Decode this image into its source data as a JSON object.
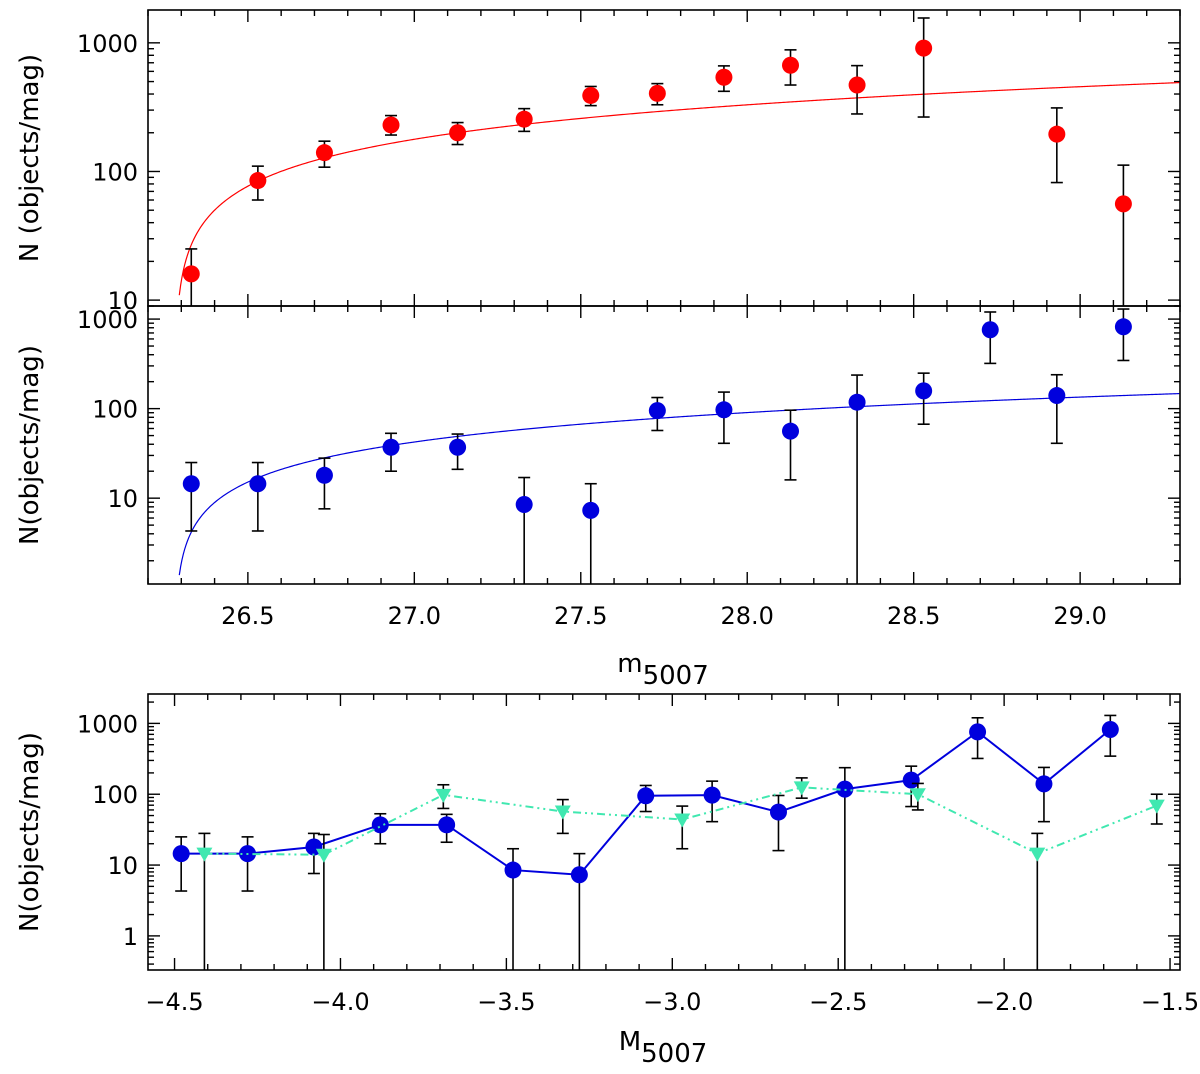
{
  "chart_data": [
    {
      "id": "top",
      "type": "scatter",
      "ylabel": "N  (objects/mag)",
      "yscale": "log",
      "ylim": [
        9,
        1800
      ],
      "xlim": [
        26.2,
        29.3
      ],
      "yticks": [
        10,
        100,
        1000
      ],
      "ytick_labels": [
        "10",
        "100",
        "1000"
      ],
      "series": [
        {
          "marker_color": "#ff0000",
          "x": [
            26.33,
            26.53,
            26.73,
            26.93,
            27.13,
            27.33,
            27.53,
            27.73,
            27.93,
            28.13,
            28.33,
            28.53,
            28.93,
            29.13
          ],
          "y": [
            16,
            85,
            140,
            230,
            200,
            255,
            390,
            405,
            540,
            670,
            470,
            910,
            195,
            56
          ],
          "err_low": [
            8.5,
            60,
            108,
            192,
            162,
            205,
            325,
            330,
            420,
            470,
            280,
            265,
            82,
            0.1
          ],
          "err_high": [
            25,
            110,
            172,
            272,
            240,
            308,
            458,
            482,
            662,
            882,
            665,
            1560,
            312,
            112
          ]
        }
      ],
      "fit": {
        "color": "#ff0000",
        "type": "log-curve"
      }
    },
    {
      "id": "middle",
      "type": "scatter",
      "ylabel": "N(objects/mag)",
      "xlabel_base": "m",
      "xlabel_sub": "5007",
      "yscale": "log",
      "ylim": [
        1.1,
        1400
      ],
      "xlim": [
        26.2,
        29.3
      ],
      "yticks": [
        10,
        100,
        1000
      ],
      "ytick_labels": [
        "10",
        "100",
        "1000"
      ],
      "xticks": [
        26.5,
        27.0,
        27.5,
        28.0,
        28.5,
        29.0
      ],
      "xtick_labels": [
        "26.5",
        "27.0",
        "27.5",
        "28.0",
        "28.5",
        "29.0"
      ],
      "series": [
        {
          "marker_color": "#0000dd",
          "x": [
            26.33,
            26.53,
            26.73,
            26.93,
            27.13,
            27.33,
            27.53,
            27.73,
            27.93,
            28.13,
            28.33,
            28.53,
            28.73,
            28.93,
            29.13
          ],
          "y": [
            14.5,
            14.5,
            18,
            37,
            37,
            8.5,
            7.3,
            95,
            97,
            56,
            118,
            158,
            760,
            140,
            820
          ],
          "err_low": [
            4.3,
            4.3,
            7.6,
            20,
            21,
            0.5,
            0.5,
            57,
            41,
            16,
            0.5,
            67,
            320,
            41,
            345
          ],
          "err_high": [
            25,
            25,
            28,
            53,
            52,
            17,
            14.5,
            133,
            153,
            96,
            237,
            249,
            1200,
            239,
            1295
          ]
        }
      ],
      "fit": {
        "color": "#0000dd",
        "type": "log-curve"
      }
    },
    {
      "id": "bottom",
      "type": "line",
      "ylabel": "N(objects/mag)",
      "xlabel_base": "M",
      "xlabel_sub": "5007",
      "yscale": "log",
      "ylim": [
        0.33,
        2600
      ],
      "xlim": [
        -4.58,
        -1.47
      ],
      "yticks": [
        1,
        10,
        100,
        1000
      ],
      "ytick_labels": [
        "1",
        "10",
        "100",
        "1000"
      ],
      "xticks": [
        -4.5,
        -4.0,
        -3.5,
        -3.0,
        -2.5,
        -2.0,
        -1.5
      ],
      "xtick_labels": [
        "−4.5",
        "−4.0",
        "−3.5",
        "−3.0",
        "−2.5",
        "−2.0",
        "−1.5"
      ],
      "series": [
        {
          "line_color": "#0000dd",
          "marker": "circle",
          "line_style": "solid",
          "x": [
            -4.48,
            -4.28,
            -4.08,
            -3.88,
            -3.68,
            -3.48,
            -3.28,
            -3.08,
            -2.88,
            -2.68,
            -2.48,
            -2.28,
            -2.08,
            -1.88,
            -1.68
          ],
          "y": [
            14.5,
            14.5,
            18,
            37,
            37,
            8.5,
            7.3,
            95,
            97,
            56,
            118,
            158,
            760,
            140,
            820
          ],
          "err_low": [
            4.3,
            4.3,
            7.6,
            20,
            21,
            0.1,
            0.1,
            57,
            41,
            16,
            0.1,
            67,
            320,
            41,
            345
          ],
          "err_high": [
            25,
            25,
            28,
            53,
            52,
            17,
            14.5,
            133,
            153,
            96,
            237,
            249,
            1200,
            239,
            1295
          ]
        },
        {
          "line_color": "#40e8b0",
          "marker": "triangle-down",
          "line_style": "dash-dot",
          "x": [
            -4.41,
            -4.05,
            -3.69,
            -3.33,
            -2.97,
            -2.61,
            -2.26,
            -1.9,
            -1.54
          ],
          "y": [
            14.5,
            14,
            98,
            57,
            44,
            125,
            100,
            14.5,
            69
          ],
          "err_low": [
            0.1,
            0.1,
            63,
            28,
            17,
            88,
            60,
            0.1,
            38
          ],
          "err_high": [
            28,
            27,
            136,
            84,
            68,
            170,
            142,
            28,
            100
          ]
        }
      ]
    }
  ]
}
